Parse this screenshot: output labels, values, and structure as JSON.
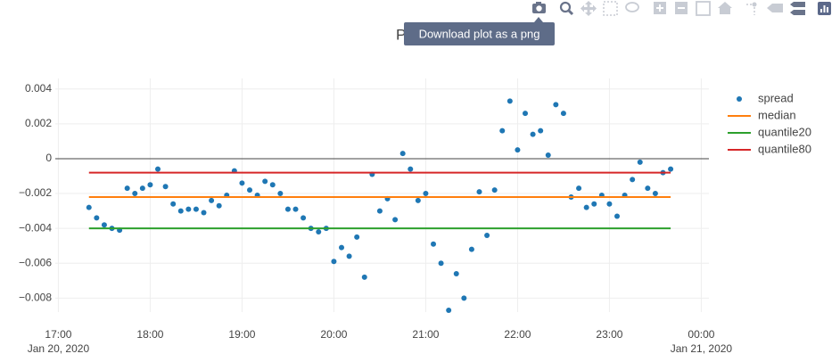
{
  "chart_data": {
    "type": "scatter",
    "title": "P",
    "tooltip": "Download plot as a png",
    "xlim": [
      "2020-01-20 16:58",
      "2020-01-21 00:05"
    ],
    "xticks": [
      {
        "value": "2020-01-20 17:00",
        "label": "17:00"
      },
      {
        "value": "2020-01-20 18:00",
        "label": "18:00"
      },
      {
        "value": "2020-01-20 19:00",
        "label": "19:00"
      },
      {
        "value": "2020-01-20 20:00",
        "label": "20:00"
      },
      {
        "value": "2020-01-20 21:00",
        "label": "21:00"
      },
      {
        "value": "2020-01-20 22:00",
        "label": "22:00"
      },
      {
        "value": "2020-01-20 23:00",
        "label": "23:00"
      },
      {
        "value": "2020-01-21 00:00",
        "label": "00:00"
      }
    ],
    "xtick_dates": [
      {
        "value": "2020-01-20 17:00",
        "label": "Jan 20, 2020"
      },
      {
        "value": "2020-01-21 00:00",
        "label": "Jan 21, 2020"
      }
    ],
    "ylim": [
      -0.0088,
      0.0046
    ],
    "yticks": [
      {
        "value": 0.004,
        "label": "0.004"
      },
      {
        "value": 0.002,
        "label": "0.002"
      },
      0,
      {
        "value": -0.002,
        "label": "−0.002"
      },
      {
        "value": -0.004,
        "label": "−0.004"
      },
      {
        "value": -0.006,
        "label": "−0.006"
      },
      {
        "value": -0.008,
        "label": "−0.008"
      }
    ],
    "grid": true,
    "zeroline": true,
    "legend": "top-right",
    "series": [
      {
        "name": "spread",
        "mode": "markers",
        "color": "#1f77b4",
        "x": [
          "2020-01-20 17:20",
          "2020-01-20 17:25",
          "2020-01-20 17:30",
          "2020-01-20 17:35",
          "2020-01-20 17:40",
          "2020-01-20 17:45",
          "2020-01-20 17:50",
          "2020-01-20 17:55",
          "2020-01-20 18:00",
          "2020-01-20 18:05",
          "2020-01-20 18:10",
          "2020-01-20 18:15",
          "2020-01-20 18:20",
          "2020-01-20 18:25",
          "2020-01-20 18:30",
          "2020-01-20 18:35",
          "2020-01-20 18:40",
          "2020-01-20 18:45",
          "2020-01-20 18:50",
          "2020-01-20 18:55",
          "2020-01-20 19:00",
          "2020-01-20 19:05",
          "2020-01-20 19:10",
          "2020-01-20 19:15",
          "2020-01-20 19:20",
          "2020-01-20 19:25",
          "2020-01-20 19:30",
          "2020-01-20 19:35",
          "2020-01-20 19:40",
          "2020-01-20 19:45",
          "2020-01-20 19:50",
          "2020-01-20 19:55",
          "2020-01-20 20:00",
          "2020-01-20 20:05",
          "2020-01-20 20:10",
          "2020-01-20 20:15",
          "2020-01-20 20:20",
          "2020-01-20 20:25",
          "2020-01-20 20:30",
          "2020-01-20 20:35",
          "2020-01-20 20:40",
          "2020-01-20 20:45",
          "2020-01-20 20:50",
          "2020-01-20 20:55",
          "2020-01-20 21:00",
          "2020-01-20 21:05",
          "2020-01-20 21:10",
          "2020-01-20 21:15",
          "2020-01-20 21:20",
          "2020-01-20 21:25",
          "2020-01-20 21:30",
          "2020-01-20 21:35",
          "2020-01-20 21:40",
          "2020-01-20 21:45",
          "2020-01-20 21:50",
          "2020-01-20 21:55",
          "2020-01-20 22:00",
          "2020-01-20 22:05",
          "2020-01-20 22:10",
          "2020-01-20 22:15",
          "2020-01-20 22:20",
          "2020-01-20 22:25",
          "2020-01-20 22:30",
          "2020-01-20 22:35",
          "2020-01-20 22:40",
          "2020-01-20 22:45",
          "2020-01-20 22:50",
          "2020-01-20 22:55",
          "2020-01-20 23:00",
          "2020-01-20 23:05",
          "2020-01-20 23:10",
          "2020-01-20 23:15",
          "2020-01-20 23:20",
          "2020-01-20 23:25",
          "2020-01-20 23:30",
          "2020-01-20 23:35",
          "2020-01-20 23:40"
        ],
        "values": [
          -0.0028,
          -0.0034,
          -0.0038,
          -0.004,
          -0.0041,
          -0.0017,
          -0.002,
          -0.0017,
          -0.0015,
          -0.0006,
          -0.0016,
          -0.0026,
          -0.003,
          -0.0029,
          -0.0029,
          -0.0031,
          -0.0024,
          -0.0027,
          -0.0021,
          -0.0007,
          -0.0014,
          -0.0018,
          -0.0021,
          -0.0013,
          -0.0015,
          -0.002,
          -0.0029,
          -0.0029,
          -0.0034,
          -0.004,
          -0.0042,
          -0.004,
          -0.0059,
          -0.0051,
          -0.0056,
          -0.0045,
          -0.0068,
          -0.0009,
          -0.003,
          -0.0023,
          -0.0035,
          0.0003,
          -0.0006,
          -0.0024,
          -0.002,
          -0.0049,
          -0.006,
          -0.0087,
          -0.0066,
          -0.008,
          -0.0052,
          -0.0019,
          -0.0044,
          -0.0018,
          0.0016,
          0.0033,
          0.0005,
          0.0026,
          0.0014,
          0.0016,
          0.0002,
          0.0031,
          0.0026,
          -0.0022,
          -0.0017,
          -0.0028,
          -0.0026,
          -0.0021,
          -0.0026,
          -0.0033,
          -0.0021,
          -0.0012,
          -0.0002,
          -0.0017,
          -0.002,
          -0.0008,
          -0.0006
        ]
      },
      {
        "name": "median",
        "mode": "lines",
        "color": "#ff7f0e",
        "x": [
          "2020-01-20 17:20",
          "2020-01-20 23:40"
        ],
        "values": [
          -0.0022,
          -0.0022
        ]
      },
      {
        "name": "quantile20",
        "mode": "lines",
        "color": "#2ca02c",
        "x": [
          "2020-01-20 17:20",
          "2020-01-20 23:40"
        ],
        "values": [
          -0.004,
          -0.004
        ]
      },
      {
        "name": "quantile80",
        "mode": "lines",
        "color": "#d62728",
        "x": [
          "2020-01-20 17:20",
          "2020-01-20 23:40"
        ],
        "values": [
          -0.0008,
          -0.0008
        ]
      }
    ]
  }
}
